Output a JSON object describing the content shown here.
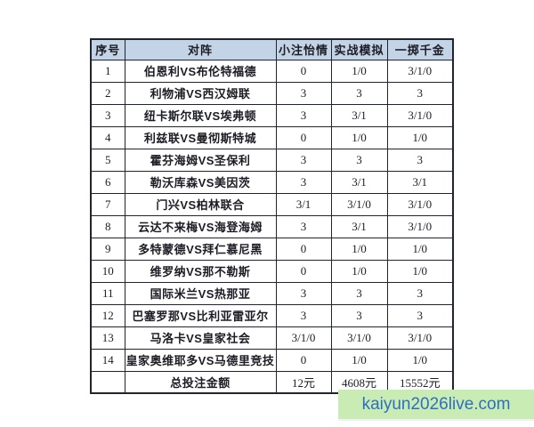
{
  "table": {
    "headers": [
      "序号",
      "对阵",
      "小注怡情",
      "实战模拟",
      "一掷千金"
    ],
    "rows": [
      {
        "seq": "1",
        "match": "伯恩利VS布伦特福德",
        "small_bet": "0",
        "simulation": "1/0",
        "big_bet": "3/1/0"
      },
      {
        "seq": "2",
        "match": "利物浦VS西汉姆联",
        "small_bet": "3",
        "simulation": "3",
        "big_bet": "3"
      },
      {
        "seq": "3",
        "match": "纽卡斯尔联VS埃弗顿",
        "small_bet": "3",
        "simulation": "3/1",
        "big_bet": "3/1/0"
      },
      {
        "seq": "4",
        "match": "利兹联VS曼彻斯特城",
        "small_bet": "0",
        "simulation": "1/0",
        "big_bet": "1/0"
      },
      {
        "seq": "5",
        "match": "霍芬海姆VS圣保利",
        "small_bet": "3",
        "simulation": "3",
        "big_bet": "3"
      },
      {
        "seq": "6",
        "match": "勒沃库森VS美因茨",
        "small_bet": "3",
        "simulation": "3/1",
        "big_bet": "3/1"
      },
      {
        "seq": "7",
        "match": "门兴VS柏林联合",
        "small_bet": "3/1",
        "simulation": "3/1/0",
        "big_bet": "3/1/0"
      },
      {
        "seq": "8",
        "match": "云达不来梅VS海登海姆",
        "small_bet": "3",
        "simulation": "3/1",
        "big_bet": "3/1/0"
      },
      {
        "seq": "9",
        "match": "多特蒙德VS拜仁慕尼黑",
        "small_bet": "0",
        "simulation": "1/0",
        "big_bet": "1/0"
      },
      {
        "seq": "10",
        "match": "维罗纳VS那不勒斯",
        "small_bet": "0",
        "simulation": "1/0",
        "big_bet": "1/0"
      },
      {
        "seq": "11",
        "match": "国际米兰VS热那亚",
        "small_bet": "3",
        "simulation": "3",
        "big_bet": "3"
      },
      {
        "seq": "12",
        "match": "巴塞罗那VS比利亚雷亚尔",
        "small_bet": "3",
        "simulation": "3",
        "big_bet": "3"
      },
      {
        "seq": "13",
        "match": "马洛卡VS皇家社会",
        "small_bet": "3/1/0",
        "simulation": "3/1/0",
        "big_bet": "3/1/0"
      },
      {
        "seq": "14",
        "match": "皇家奥维耶多VS马德里竞技",
        "small_bet": "0",
        "simulation": "1/0",
        "big_bet": "1/0"
      }
    ],
    "total_row": {
      "seq": "",
      "label": "总投注金额",
      "small_bet_total": "12元",
      "simulation_total": "4608元",
      "big_bet_total": "15552元"
    }
  },
  "watermark": {
    "text": "kaiyun2026live.com"
  },
  "colors": {
    "header_bg": "#c3d4e6",
    "table_border": "#1f2430",
    "watermark_bg": "#c9ecb4",
    "watermark_text": "#2f6fc0"
  }
}
